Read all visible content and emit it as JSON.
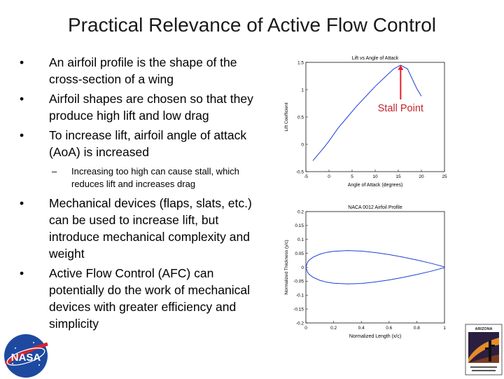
{
  "slide": {
    "title": "Practical Relevance of Active Flow Control",
    "bullets": [
      "An airfoil profile is the shape of the cross-section of a wing",
      "Airfoil shapes are chosen so that they produce high lift and low drag",
      "To increase lift, airfoil angle of attack (AoA) is increased"
    ],
    "sub_bullet": "Increasing too high can cause stall, which reduces lift and increases drag",
    "bullets2": [
      "Mechanical devices (flaps, slats, etc.) can be used to increase lift, but introduce mechanical complexity and weight",
      "Active Flow Control (AFC) can potentially do the work of mechanical devices with greater efficiency and simplicity"
    ],
    "bullet_marker": "•",
    "sub_marker": "–"
  },
  "annotation": {
    "stall_label": "Stall Point",
    "arrow_color": "#e8202a",
    "label_color": "#c0262d"
  },
  "logos": {
    "nasa_text": "NASA",
    "arizona_text": "ARIZONA"
  },
  "chart_data": [
    {
      "type": "line",
      "title": "Lift vs Angle of Attack",
      "xlabel": "Angle of Attack (degrees)",
      "ylabel": "Lift Coefficient",
      "xlim": [
        -5,
        25
      ],
      "ylim": [
        -0.5,
        1.5
      ],
      "xticks": [
        "-5",
        "0",
        "5",
        "10",
        "15",
        "20",
        "25"
      ],
      "yticks": [
        "-0.5",
        "0",
        "0.5",
        "1",
        "1.5"
      ],
      "grid": false,
      "color": "#1f3fd6",
      "series": [
        {
          "x": [
            -3.5,
            -1,
            0,
            2,
            4,
            6,
            8,
            10,
            12,
            14,
            15.5,
            17,
            18,
            19,
            20
          ],
          "y": [
            -0.3,
            -0.05,
            0.06,
            0.3,
            0.5,
            0.7,
            0.88,
            1.06,
            1.22,
            1.38,
            1.45,
            1.38,
            1.2,
            1.02,
            0.88
          ]
        }
      ]
    },
    {
      "type": "line",
      "title": "NACA 0012 Airfoil Profile",
      "xlabel": "Normalized Length (x/c)",
      "ylabel": "Normalized Thickness (y/c)",
      "xlim": [
        0,
        1
      ],
      "ylim": [
        -0.2,
        0.2
      ],
      "xticks": [
        "0",
        "0.2",
        "0.4",
        "0.6",
        "0.8",
        "1"
      ],
      "yticks": [
        "0.2",
        "0.15",
        "0.1",
        "0.05",
        "0",
        "-0.05",
        "-0.1",
        "-0.15",
        "-0.2"
      ],
      "grid": false,
      "color": "#1f3fd6",
      "series": [
        {
          "x": [
            0,
            0.0125,
            0.025,
            0.05,
            0.1,
            0.15,
            0.2,
            0.3,
            0.4,
            0.5,
            0.6,
            0.7,
            0.8,
            0.9,
            0.95,
            1.0
          ],
          "y": [
            0,
            0.0189,
            0.0262,
            0.0356,
            0.0468,
            0.0535,
            0.0574,
            0.06,
            0.058,
            0.0529,
            0.0456,
            0.0366,
            0.0262,
            0.0145,
            0.0081,
            0.0013
          ]
        },
        {
          "x": [
            0,
            0.0125,
            0.025,
            0.05,
            0.1,
            0.15,
            0.2,
            0.3,
            0.4,
            0.5,
            0.6,
            0.7,
            0.8,
            0.9,
            0.95,
            1.0
          ],
          "y": [
            0,
            -0.0189,
            -0.0262,
            -0.0356,
            -0.0468,
            -0.0535,
            -0.0574,
            -0.06,
            -0.058,
            -0.0529,
            -0.0456,
            -0.0366,
            -0.0262,
            -0.0145,
            -0.0081,
            -0.0013
          ]
        }
      ]
    }
  ]
}
